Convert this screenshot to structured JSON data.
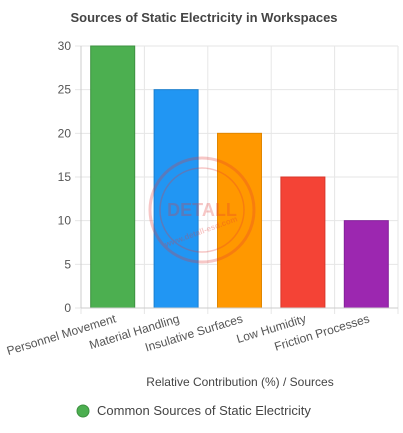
{
  "chart_data": {
    "type": "bar",
    "title": "Sources of Static Electricity in Workspaces",
    "categories": [
      "Personnel Movement",
      "Material Handling",
      "Insulative Surfaces",
      "Low Humidity",
      "Friction Processes"
    ],
    "series": [
      {
        "name": "Common Sources of Static Electricity",
        "values": [
          30,
          25,
          20,
          15,
          10
        ]
      }
    ],
    "bar_colors": [
      "#4caf50",
      "#2196f3",
      "#ff9800",
      "#f44336",
      "#9c27b0"
    ],
    "bar_border_colors": [
      "#3d9140",
      "#1a7fd0",
      "#e08600",
      "#d9372b",
      "#84209a"
    ],
    "xlabel": "Relative Contribution (%) / Sources",
    "ylabel": "",
    "ylim": [
      0,
      30
    ],
    "y_ticks": [
      0,
      5,
      10,
      15,
      20,
      25,
      30
    ],
    "grid": true,
    "legend_position": "bottom",
    "legend_color": "#4caf50"
  },
  "watermark": {
    "brand": "DETALL",
    "url": "www.detall-esd.com",
    "color": "#e53935"
  }
}
